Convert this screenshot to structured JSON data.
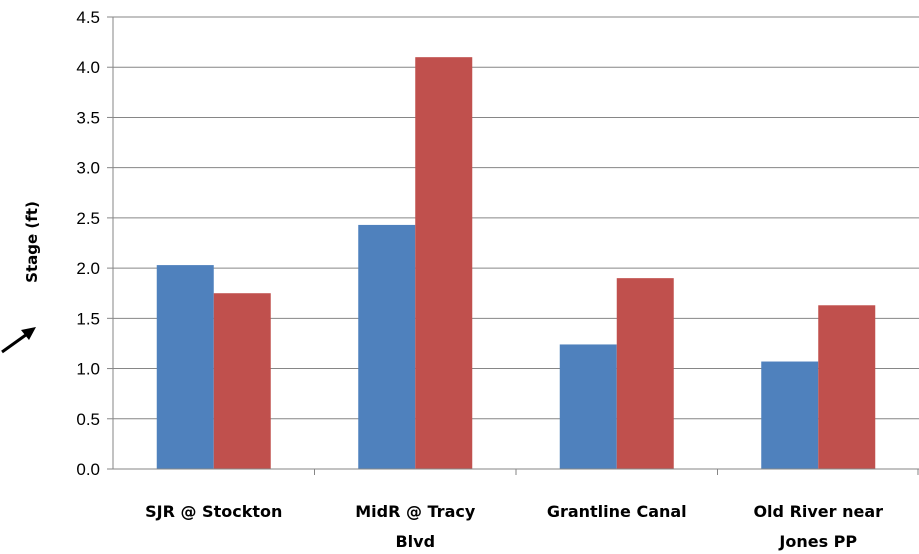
{
  "chart_data": {
    "type": "bar",
    "categories": [
      [
        "SJR @ Stockton"
      ],
      [
        "MidR @ Tracy",
        "Blvd"
      ],
      [
        "Grantline Canal"
      ],
      [
        "Old River near",
        "Jones PP"
      ]
    ],
    "series": [
      {
        "color": "#4f81bd",
        "values": [
          2.03,
          2.43,
          1.24,
          1.07
        ]
      },
      {
        "color": "#c0504d",
        "values": [
          1.75,
          4.1,
          1.9,
          1.63
        ]
      }
    ],
    "ylabel": "Stage (ft)",
    "ylim": [
      0,
      4.5
    ],
    "yticks": [
      "0.0",
      "0.5",
      "1.0",
      "1.5",
      "2.0",
      "2.5",
      "3.0",
      "3.5",
      "4.0",
      "4.5"
    ],
    "grid": true,
    "annotation": "arrow pointing up-right at left edge"
  }
}
